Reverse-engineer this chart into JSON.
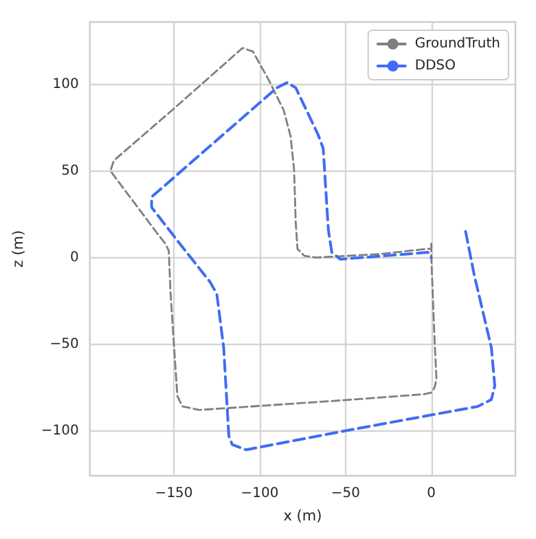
{
  "chart_data": {
    "type": "line",
    "xlabel": "x (m)",
    "ylabel": "z (m)",
    "xlim": [
      -199,
      49
    ],
    "ylim": [
      -126,
      136
    ],
    "xticks": [
      -150,
      -100,
      -50,
      0
    ],
    "yticks": [
      -100,
      -50,
      0,
      50,
      100
    ],
    "grid": true,
    "legend": "top right",
    "marker": "none",
    "line_style": "dashed",
    "series": [
      {
        "name": "GroundTruth",
        "color": "#7f7f7f",
        "x": [
          0,
          0,
          2,
          3,
          2,
          0,
          -5,
          -60,
          -135,
          -145,
          -148,
          -150,
          -152,
          -153,
          -155,
          -159,
          -187,
          -185,
          -150,
          -110,
          -104,
          -95,
          -86,
          -82,
          -80,
          -79,
          -78,
          -74,
          -67,
          -30,
          -3,
          -1
        ],
        "values": [
          8,
          0,
          -50,
          -70,
          -75,
          -78,
          -79,
          -83,
          -88,
          -86,
          -80,
          -50,
          -20,
          4,
          8,
          13,
          50,
          56,
          86,
          121,
          119,
          103,
          85,
          70,
          51,
          20,
          5,
          1,
          0,
          2,
          5,
          5
        ]
      },
      {
        "name": "DDSO",
        "color": "#3f6cf5",
        "x": [
          20,
          25,
          35,
          37,
          35,
          27,
          -50,
          -108,
          -116,
          -118,
          -121,
          -125,
          -129,
          -145,
          -163,
          -163,
          -156,
          -90,
          -84,
          -79,
          -66,
          -63,
          -60,
          -58,
          -53,
          -2,
          0
        ],
        "values": [
          15,
          -10,
          -52,
          -74,
          -82,
          -86,
          -100,
          -111,
          -108,
          -103,
          -52,
          -21,
          -14,
          6,
          29,
          35,
          41,
          98,
          101,
          98,
          71,
          63,
          16,
          3,
          -1,
          3,
          0
        ]
      }
    ]
  }
}
